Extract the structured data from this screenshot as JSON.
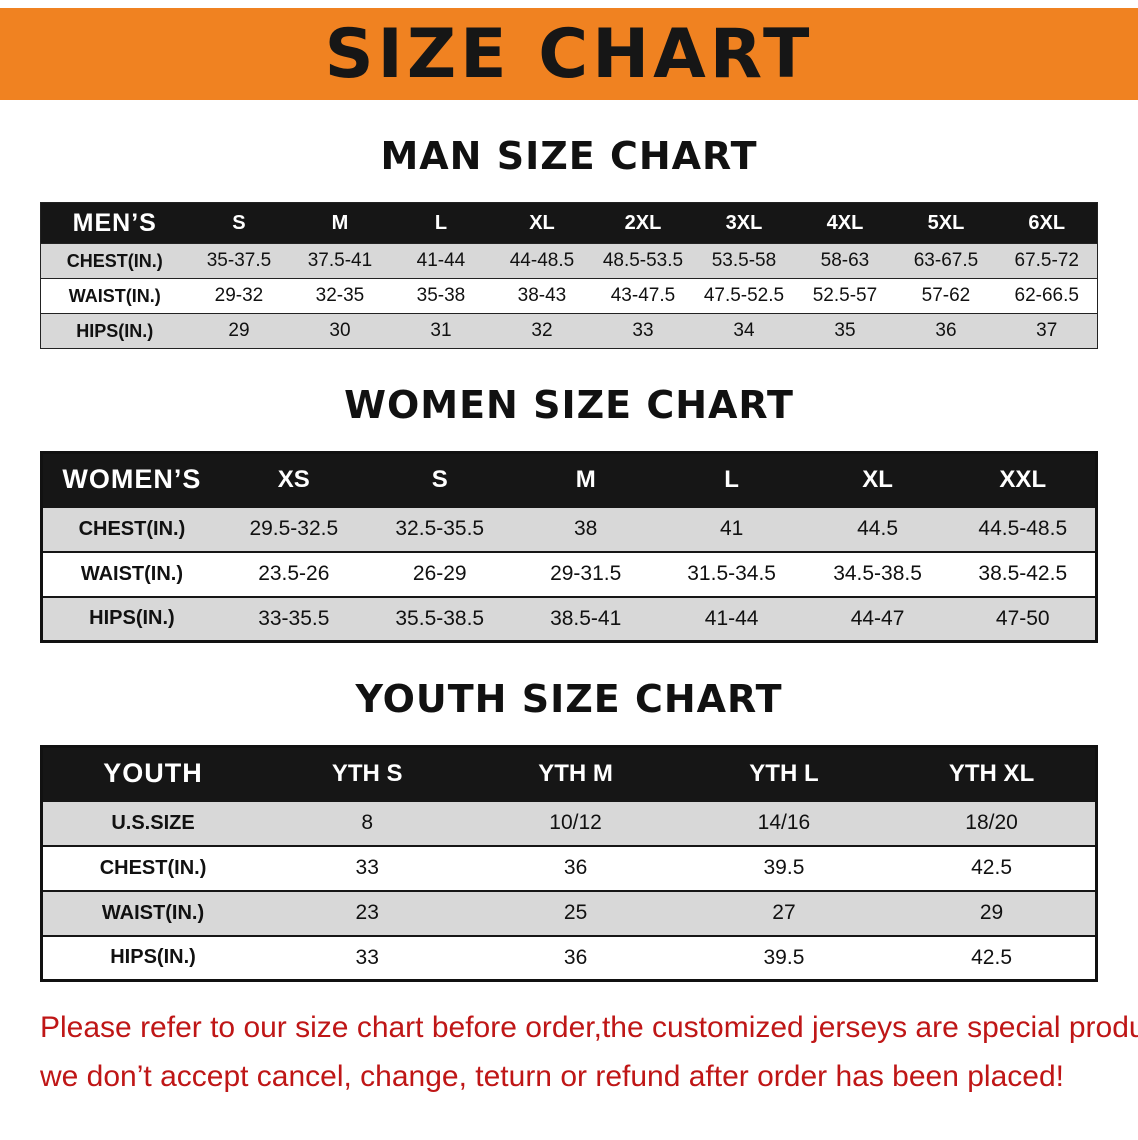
{
  "banner": {
    "title": "SIZE CHART"
  },
  "sections": {
    "men": {
      "heading": "MAN SIZE CHART",
      "table": {
        "header": [
          "MEN’S",
          "S",
          "M",
          "L",
          "XL",
          "2XL",
          "3XL",
          "4XL",
          "5XL",
          "6XL"
        ],
        "rows": [
          [
            "CHEST(IN.)",
            "35-37.5",
            "37.5-41",
            "41-44",
            "44-48.5",
            "48.5-53.5",
            "53.5-58",
            "58-63",
            "63-67.5",
            "67.5-72"
          ],
          [
            "WAIST(IN.)",
            "29-32",
            "32-35",
            "35-38",
            "38-43",
            "43-47.5",
            "47.5-52.5",
            "52.5-57",
            "57-62",
            "62-66.5"
          ],
          [
            "HIPS(IN.)",
            "29",
            "30",
            "31",
            "32",
            "33",
            "34",
            "35",
            "36",
            "37"
          ]
        ]
      }
    },
    "women": {
      "heading": "WOMEN SIZE CHART",
      "table": {
        "header": [
          "WOMEN’S",
          "XS",
          "S",
          "M",
          "L",
          "XL",
          "XXL"
        ],
        "rows": [
          [
            "CHEST(IN.)",
            "29.5-32.5",
            "32.5-35.5",
            "38",
            "41",
            "44.5",
            "44.5-48.5"
          ],
          [
            "WAIST(IN.)",
            "23.5-26",
            "26-29",
            "29-31.5",
            "31.5-34.5",
            "34.5-38.5",
            "38.5-42.5"
          ],
          [
            "HIPS(IN.)",
            "33-35.5",
            "35.5-38.5",
            "38.5-41",
            "41-44",
            "44-47",
            "47-50"
          ]
        ]
      }
    },
    "youth": {
      "heading": "YOUTH SIZE CHART",
      "table": {
        "header": [
          "YOUTH",
          "YTH S",
          "YTH M",
          "YTH L",
          "YTH XL"
        ],
        "rows": [
          [
            "U.S.SIZE",
            "8",
            "10/12",
            "14/16",
            "18/20"
          ],
          [
            "CHEST(IN.)",
            "33",
            "36",
            "39.5",
            "42.5"
          ],
          [
            "WAIST(IN.)",
            "23",
            "25",
            "27",
            "29"
          ],
          [
            "HIPS(IN.)",
            "33",
            "36",
            "39.5",
            "42.5"
          ]
        ]
      }
    }
  },
  "disclaimer": {
    "line1": "Please refer to our size chart before order,the customized jerseys are special products,",
    "line2": "we don’t accept cancel, change, teturn or refund after order has been placed!"
  },
  "colors": {
    "banner-orange": "#f08221",
    "header-black": "#161616",
    "row-gray": "#d8d8d8",
    "disclaimer-red": "#bf1616"
  }
}
